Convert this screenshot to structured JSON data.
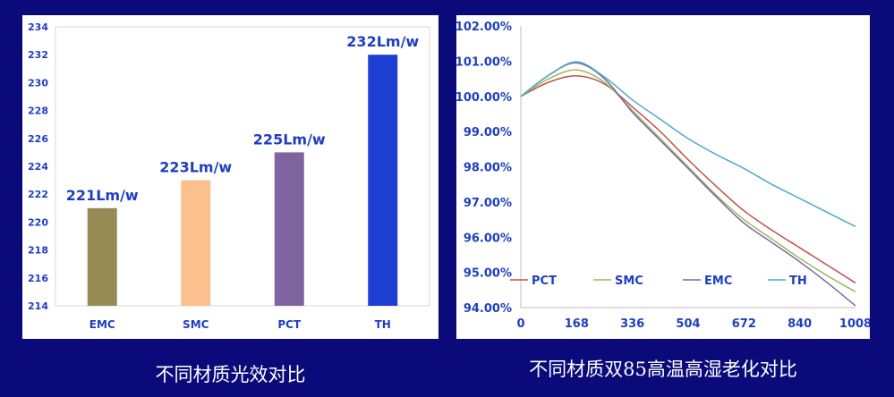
{
  "colors": {
    "background": "#0a0a7a",
    "axis_text": "#1f3fbf",
    "label_blue": "#1f3fbf",
    "grid": "#d9d9d9"
  },
  "captions": {
    "left": "不同材质光效对比",
    "right": "不同材质双85高温高湿老化对比"
  },
  "chart_data": [
    {
      "type": "bar",
      "categories": [
        "EMC",
        "SMC",
        "PCT",
        "TH"
      ],
      "values": [
        221,
        223,
        225,
        232
      ],
      "data_labels": [
        "221Lm/w",
        "223Lm/w",
        "225Lm/w",
        "232Lm/w"
      ],
      "colors": [
        "#968b55",
        "#fac18f",
        "#8064a2",
        "#1e3fd4"
      ],
      "ylim": [
        214,
        234
      ],
      "yticks": [
        "214",
        "216",
        "218",
        "220",
        "222",
        "224",
        "226",
        "228",
        "230",
        "232",
        "234"
      ],
      "grid": false,
      "legend": "none"
    },
    {
      "type": "line",
      "xlim": [
        0,
        1008
      ],
      "ylim": [
        94,
        102
      ],
      "xticks": [
        "0",
        "168",
        "336",
        "504",
        "672",
        "840",
        "1008"
      ],
      "yticks": [
        "94.00%",
        "95.00%",
        "96.00%",
        "97.00%",
        "98.00%",
        "99.00%",
        "100.00%",
        "101.00%",
        "102.00%"
      ],
      "grid": false,
      "legend": "bottom-inside",
      "series": [
        {
          "name": "PCT",
          "color": "#c0504d",
          "points": [
            [
              0,
              100
            ],
            [
              84,
              100.4
            ],
            [
              168,
              100.58
            ],
            [
              252,
              100.35
            ],
            [
              336,
              99.7
            ],
            [
              420,
              99
            ],
            [
              504,
              98.2
            ],
            [
              588,
              97.45
            ],
            [
              672,
              96.75
            ],
            [
              756,
              96.2
            ],
            [
              840,
              95.7
            ],
            [
              924,
              95.2
            ],
            [
              1008,
              94.7
            ]
          ]
        },
        {
          "name": "SMC",
          "color": "#9bbb59",
          "points": [
            [
              0,
              100
            ],
            [
              84,
              100.5
            ],
            [
              168,
              100.75
            ],
            [
              252,
              100.4
            ],
            [
              336,
              99.6
            ],
            [
              420,
              98.8
            ],
            [
              504,
              98.0
            ],
            [
              588,
              97.2
            ],
            [
              672,
              96.5
            ],
            [
              756,
              95.95
            ],
            [
              840,
              95.4
            ],
            [
              924,
              94.9
            ],
            [
              1008,
              94.45
            ]
          ]
        },
        {
          "name": "EMC",
          "color": "#8064a2",
          "points": [
            [
              0,
              100
            ],
            [
              84,
              100.6
            ],
            [
              168,
              100.95
            ],
            [
              252,
              100.5
            ],
            [
              336,
              99.55
            ],
            [
              420,
              98.75
            ],
            [
              504,
              97.95
            ],
            [
              588,
              97.15
            ],
            [
              672,
              96.4
            ],
            [
              756,
              95.85
            ],
            [
              840,
              95.3
            ],
            [
              924,
              94.7
            ],
            [
              1008,
              94.05
            ]
          ]
        },
        {
          "name": "TH",
          "color": "#4bacc6",
          "points": [
            [
              0,
              100
            ],
            [
              84,
              100.6
            ],
            [
              168,
              100.98
            ],
            [
              252,
              100.55
            ],
            [
              336,
              99.9
            ],
            [
              420,
              99.35
            ],
            [
              504,
              98.8
            ],
            [
              588,
              98.35
            ],
            [
              672,
              97.95
            ],
            [
              756,
              97.5
            ],
            [
              840,
              97.1
            ],
            [
              924,
              96.7
            ],
            [
              1008,
              96.3
            ]
          ]
        }
      ]
    }
  ]
}
